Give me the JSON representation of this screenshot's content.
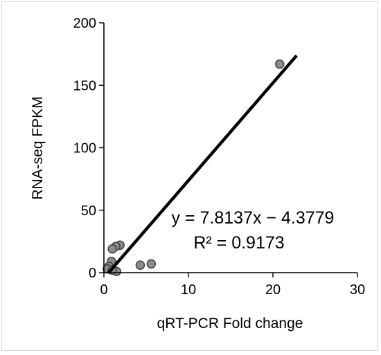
{
  "chart_data": {
    "type": "scatter",
    "xlabel": "qRT-PCR Fold change",
    "ylabel": "RNA-seq FPKM",
    "xlim": [
      0,
      30
    ],
    "ylim": [
      0,
      200
    ],
    "x_ticks": [
      "0",
      "10",
      "20",
      "30"
    ],
    "y_ticks": [
      "0",
      "50",
      "100",
      "150",
      "200"
    ],
    "grid": false,
    "points": [
      {
        "x": 20.8,
        "y": 167
      },
      {
        "x": 1.9,
        "y": 22
      },
      {
        "x": 1.4,
        "y": 21
      },
      {
        "x": 1.0,
        "y": 19
      },
      {
        "x": 0.9,
        "y": 9
      },
      {
        "x": 0.6,
        "y": 5
      },
      {
        "x": 0.4,
        "y": 3
      },
      {
        "x": 1.5,
        "y": 1
      },
      {
        "x": 1.0,
        "y": 2
      },
      {
        "x": 4.3,
        "y": 6
      },
      {
        "x": 5.6,
        "y": 7
      }
    ],
    "trendline": {
      "slope": 7.8137,
      "intercept": -4.3779,
      "x_range": [
        0.5,
        22.8
      ]
    },
    "equation_label": "y = 7.8137x − 4.3779",
    "r2_label": "R² = 0.9173",
    "colors": {
      "marker_fill": "#8c8c8c",
      "marker_stroke": "#404040",
      "trendline": "#000000"
    }
  }
}
